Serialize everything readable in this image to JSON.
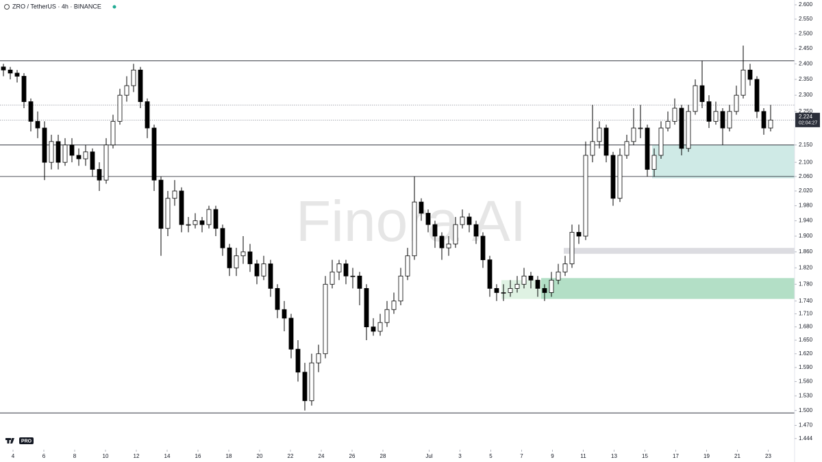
{
  "chart_data": {
    "type": "candlestick",
    "title": "ZRO / TetherUS · 4h · BINANCE",
    "watermark": "Finora AI",
    "logo_text": "PRO",
    "log_scale": true,
    "up_color": "#ffffff",
    "down_color": "#000000",
    "border_color": "#000000",
    "xlim": [
      0,
      116
    ],
    "xticks": [
      {
        "value": 1.9,
        "label": "4"
      },
      {
        "value": 6.4,
        "label": "6"
      },
      {
        "value": 10.9,
        "label": "8"
      },
      {
        "value": 15.4,
        "label": "10"
      },
      {
        "value": 19.9,
        "label": "12"
      },
      {
        "value": 24.4,
        "label": "14"
      },
      {
        "value": 28.9,
        "label": "16"
      },
      {
        "value": 33.4,
        "label": "18"
      },
      {
        "value": 37.9,
        "label": "20"
      },
      {
        "value": 42.4,
        "label": "22"
      },
      {
        "value": 46.9,
        "label": "24"
      },
      {
        "value": 51.4,
        "label": "26"
      },
      {
        "value": 55.9,
        "label": "28"
      },
      {
        "value": 62.65,
        "label": "Jul"
      },
      {
        "value": 67.15,
        "label": "3"
      },
      {
        "value": 71.65,
        "label": "5"
      },
      {
        "value": 76.15,
        "label": "7"
      },
      {
        "value": 80.65,
        "label": "9"
      },
      {
        "value": 85.15,
        "label": "11"
      },
      {
        "value": 89.65,
        "label": "13"
      },
      {
        "value": 94.15,
        "label": "15"
      },
      {
        "value": 98.65,
        "label": "17"
      },
      {
        "value": 103.15,
        "label": "19"
      },
      {
        "value": 107.65,
        "label": "21"
      },
      {
        "value": 112.15,
        "label": "23"
      }
    ],
    "ylim": [
      1.425,
      2.617
    ],
    "yticks": [
      {
        "value": 2.6,
        "label": "2.600"
      },
      {
        "value": 2.55,
        "label": "2.550"
      },
      {
        "value": 2.5,
        "label": "2.500"
      },
      {
        "value": 2.45,
        "label": "2.450"
      },
      {
        "value": 2.4,
        "label": "2.400"
      },
      {
        "value": 2.35,
        "label": "2.350"
      },
      {
        "value": 2.3,
        "label": "2.300"
      },
      {
        "value": 2.25,
        "label": "2.250"
      },
      {
        "value": 2.15,
        "label": "2.150"
      },
      {
        "value": 2.1,
        "label": "2.100"
      },
      {
        "value": 2.06,
        "label": "2.060"
      },
      {
        "value": 2.02,
        "label": "2.020"
      },
      {
        "value": 1.98,
        "label": "1.980"
      },
      {
        "value": 1.94,
        "label": "1.940"
      },
      {
        "value": 1.9,
        "label": "1.900"
      },
      {
        "value": 1.86,
        "label": "1.860"
      },
      {
        "value": 1.82,
        "label": "1.820"
      },
      {
        "value": 1.78,
        "label": "1.780"
      },
      {
        "value": 1.74,
        "label": "1.740"
      },
      {
        "value": 1.71,
        "label": "1.710"
      },
      {
        "value": 1.68,
        "label": "1.680"
      },
      {
        "value": 1.65,
        "label": "1.650"
      },
      {
        "value": 1.62,
        "label": "1.620"
      },
      {
        "value": 1.59,
        "label": "1.590"
      },
      {
        "value": 1.56,
        "label": "1.560"
      },
      {
        "value": 1.53,
        "label": "1.530"
      },
      {
        "value": 1.5,
        "label": "1.500"
      },
      {
        "value": 1.47,
        "label": "1.470"
      },
      1.444
    ],
    "open": [
      2.39,
      2.38,
      2.37,
      2.36,
      2.28,
      2.22,
      2.2,
      2.1,
      2.16,
      2.1,
      2.15,
      2.12,
      2.11,
      2.13,
      2.08,
      2.05,
      2.15,
      2.22,
      2.3,
      2.33,
      2.38,
      2.28,
      2.2,
      2.05,
      1.92,
      2.0,
      2.02,
      1.93,
      1.93,
      1.94,
      1.93,
      1.97,
      1.92,
      1.87,
      1.82,
      1.85,
      1.86,
      1.83,
      1.8,
      1.83,
      1.77,
      1.72,
      1.7,
      1.63,
      1.58,
      1.52,
      1.6,
      1.62,
      1.78,
      1.81,
      1.83,
      1.8,
      1.8,
      1.77,
      1.68,
      1.67,
      1.69,
      1.72,
      1.74,
      1.8,
      1.85,
      1.99,
      1.96,
      1.93,
      1.9,
      1.87,
      1.88,
      1.93,
      1.95,
      1.93,
      1.9,
      1.84,
      1.77,
      1.76,
      1.76,
      1.77,
      1.78,
      1.8,
      1.79,
      1.77,
      1.76,
      1.79,
      1.81,
      1.83,
      1.91,
      1.9,
      2.12,
      2.16,
      2.2,
      2.12,
      2.0,
      2.12,
      2.16,
      2.2,
      2.2,
      2.08,
      2.12,
      2.2,
      2.22,
      2.26,
      2.14,
      2.25,
      2.33,
      2.28,
      2.22,
      2.25,
      2.2,
      2.25,
      2.3,
      2.38,
      2.35,
      2.25,
      2.2
    ],
    "high": [
      2.4,
      2.39,
      2.38,
      2.37,
      2.29,
      2.25,
      2.22,
      2.18,
      2.18,
      2.17,
      2.17,
      2.14,
      2.15,
      2.14,
      2.1,
      2.17,
      2.24,
      2.32,
      2.36,
      2.4,
      2.39,
      2.29,
      2.21,
      2.06,
      2.02,
      2.05,
      2.03,
      1.95,
      1.96,
      1.95,
      1.98,
      1.98,
      1.93,
      1.88,
      1.87,
      1.9,
      1.88,
      1.84,
      1.85,
      1.84,
      1.78,
      1.74,
      1.71,
      1.65,
      1.6,
      1.62,
      1.64,
      1.8,
      1.84,
      1.84,
      1.84,
      1.82,
      1.81,
      1.78,
      1.7,
      1.71,
      1.74,
      1.76,
      1.82,
      1.87,
      2.06,
      2.0,
      1.97,
      1.94,
      1.91,
      1.9,
      1.95,
      1.97,
      1.96,
      1.94,
      1.91,
      1.85,
      1.78,
      1.78,
      1.79,
      1.8,
      1.82,
      1.81,
      1.8,
      1.78,
      1.81,
      1.83,
      1.85,
      1.93,
      1.93,
      2.16,
      2.27,
      2.22,
      2.21,
      2.13,
      2.14,
      2.18,
      2.26,
      2.27,
      2.21,
      2.14,
      2.22,
      2.25,
      2.29,
      2.27,
      2.27,
      2.35,
      2.41,
      2.3,
      2.28,
      2.26,
      2.27,
      2.33,
      2.46,
      2.4,
      2.36,
      2.26,
      2.27
    ],
    "low": [
      2.36,
      2.35,
      2.34,
      2.26,
      2.19,
      2.17,
      2.05,
      2.08,
      2.08,
      2.09,
      2.1,
      2.09,
      2.09,
      2.06,
      2.02,
      2.04,
      2.14,
      2.21,
      2.28,
      2.31,
      2.26,
      2.17,
      2.02,
      1.85,
      1.9,
      1.98,
      1.91,
      1.91,
      1.92,
      1.91,
      1.92,
      1.9,
      1.85,
      1.8,
      1.8,
      1.83,
      1.81,
      1.78,
      1.79,
      1.75,
      1.7,
      1.67,
      1.61,
      1.56,
      1.5,
      1.51,
      1.58,
      1.61,
      1.77,
      1.79,
      1.78,
      1.77,
      1.73,
      1.65,
      1.66,
      1.66,
      1.68,
      1.71,
      1.73,
      1.79,
      1.84,
      1.94,
      1.91,
      1.87,
      1.84,
      1.85,
      1.87,
      1.92,
      1.91,
      1.88,
      1.82,
      1.75,
      1.74,
      1.74,
      1.75,
      1.76,
      1.77,
      1.77,
      1.75,
      1.74,
      1.75,
      1.78,
      1.8,
      1.82,
      1.88,
      1.89,
      2.1,
      2.14,
      2.1,
      1.98,
      1.99,
      2.11,
      2.15,
      2.17,
      2.06,
      2.06,
      2.11,
      2.19,
      2.21,
      2.12,
      2.13,
      2.24,
      2.26,
      2.2,
      2.21,
      2.15,
      2.19,
      2.24,
      2.29,
      2.33,
      2.23,
      2.18,
      2.19
    ],
    "close": [
      2.38,
      2.37,
      2.36,
      2.28,
      2.22,
      2.2,
      2.1,
      2.16,
      2.1,
      2.15,
      2.12,
      2.11,
      2.13,
      2.08,
      2.05,
      2.15,
      2.22,
      2.3,
      2.33,
      2.38,
      2.28,
      2.2,
      2.05,
      1.92,
      2.0,
      2.02,
      1.93,
      1.93,
      1.94,
      1.93,
      1.97,
      1.92,
      1.87,
      1.82,
      1.85,
      1.86,
      1.83,
      1.8,
      1.83,
      1.77,
      1.72,
      1.7,
      1.63,
      1.58,
      1.52,
      1.6,
      1.62,
      1.78,
      1.81,
      1.83,
      1.8,
      1.8,
      1.77,
      1.68,
      1.67,
      1.69,
      1.72,
      1.74,
      1.8,
      1.85,
      1.99,
      1.96,
      1.93,
      1.9,
      1.87,
      1.88,
      1.93,
      1.95,
      1.93,
      1.9,
      1.84,
      1.77,
      1.76,
      1.76,
      1.77,
      1.78,
      1.8,
      1.79,
      1.77,
      1.76,
      1.79,
      1.81,
      1.83,
      1.91,
      1.9,
      2.12,
      2.16,
      2.2,
      2.12,
      2.0,
      2.12,
      2.16,
      2.2,
      2.2,
      2.08,
      2.12,
      2.2,
      2.22,
      2.26,
      2.14,
      2.25,
      2.33,
      2.28,
      2.22,
      2.25,
      2.2,
      2.25,
      2.3,
      2.38,
      2.35,
      2.25,
      2.2,
      2.224
    ],
    "levels": [
      2.41,
      2.15,
      2.06,
      1.495
    ],
    "dotted_levels": [
      2.27,
      2.224
    ],
    "zones": [
      {
        "top": 2.15,
        "bottom": 2.055,
        "from": 95.2,
        "color": "#cfeae6"
      },
      {
        "top": 1.87,
        "bottom": 1.855,
        "from": 82.3,
        "color": "#dcdce1"
      },
      {
        "top": 1.795,
        "bottom": 1.745,
        "from": 79,
        "color": "#b3dfc6"
      },
      {
        "top": 1.79,
        "bottom": 1.745,
        "from": 73.2,
        "to": 79,
        "color": "#dff2e3"
      }
    ],
    "last_price": 2.224,
    "countdown": "02:04:27"
  }
}
